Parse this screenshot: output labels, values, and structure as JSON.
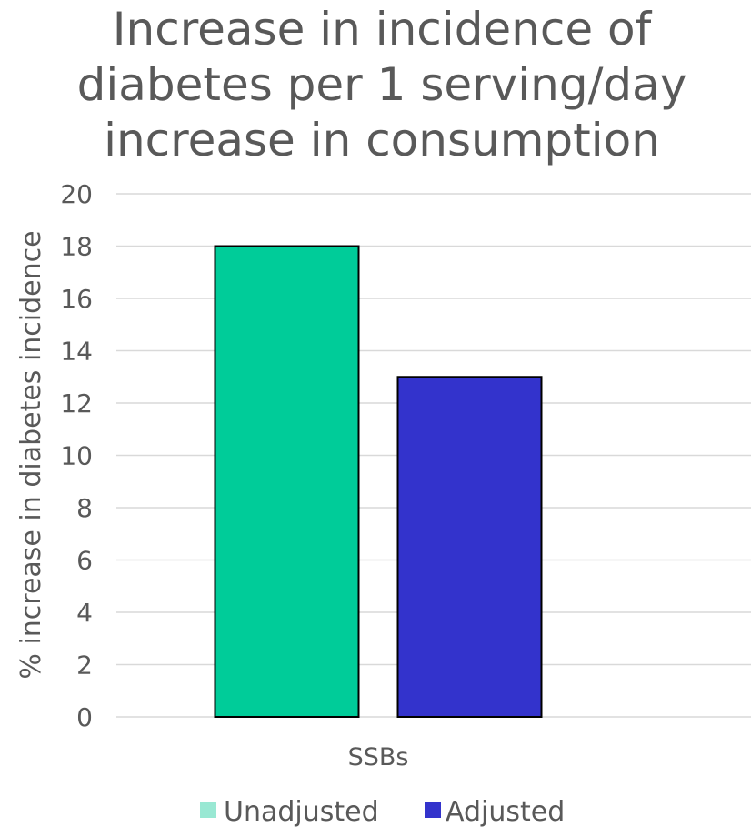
{
  "chart_data": {
    "type": "bar",
    "title_lines": [
      "Increase in incidence of",
      "diabetes per 1 serving/day",
      "increase in consumption"
    ],
    "ylabel": "% increase in diabetes incidence",
    "xlabel": "",
    "categories": [
      "SSBs"
    ],
    "ylim": [
      0,
      20
    ],
    "yticks": [
      0,
      2,
      4,
      6,
      8,
      10,
      12,
      14,
      16,
      18,
      20
    ],
    "grid": true,
    "legend_position": "bottom",
    "series": [
      {
        "name": "Unadjusted",
        "values": [
          18
        ],
        "color": "#00cc99",
        "legend_color": "#99e8d3"
      },
      {
        "name": "Adjusted",
        "values": [
          13
        ],
        "color": "#3333cc",
        "legend_color": "#3333cc"
      }
    ]
  }
}
